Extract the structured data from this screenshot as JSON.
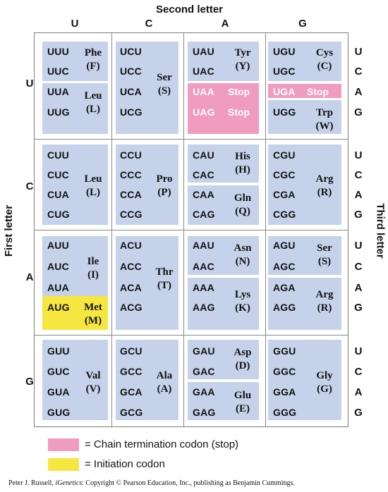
{
  "labels": {
    "second_letter": "Second letter",
    "first_letter": "First letter",
    "third_letter": "Third letter"
  },
  "columns": [
    "U",
    "C",
    "A",
    "G"
  ],
  "rows": [
    "U",
    "C",
    "A",
    "G"
  ],
  "third": [
    "U",
    "C",
    "A",
    "G"
  ],
  "colors": {
    "cell": "#c5d2ea",
    "stop": "#ef9cbf",
    "start": "#f6e640",
    "grid_line": "#8a8a8a"
  },
  "cells": {
    "UU": {
      "codons": [
        "UUU",
        "UUC",
        "UUA",
        "UUG"
      ],
      "aa": [
        {
          "name": "Phe",
          "abbr": "(F)"
        },
        {
          "name": "Leu",
          "abbr": "(L)"
        }
      ]
    },
    "UC": {
      "codons": [
        "UCU",
        "UCC",
        "UCA",
        "UCG"
      ],
      "aa": [
        {
          "name": "Ser",
          "abbr": "(S)"
        }
      ]
    },
    "UA": {
      "codons": [
        "UAU",
        "UAC",
        "UAA",
        "UAG"
      ],
      "aa": [
        {
          "name": "Tyr",
          "abbr": "(Y)"
        }
      ],
      "stop": [
        "Stop",
        "Stop"
      ]
    },
    "UG": {
      "codons": [
        "UGU",
        "UGC",
        "UGA",
        "UGG"
      ],
      "aa": [
        {
          "name": "Cys",
          "abbr": "(C)"
        },
        {
          "name": "Trp",
          "abbr": "(W)"
        }
      ],
      "stop": [
        "Stop"
      ]
    },
    "CU": {
      "codons": [
        "CUU",
        "CUC",
        "CUA",
        "CUG"
      ],
      "aa": [
        {
          "name": "Leu",
          "abbr": "(L)"
        }
      ]
    },
    "CC": {
      "codons": [
        "CCU",
        "CCC",
        "CCA",
        "CCG"
      ],
      "aa": [
        {
          "name": "Pro",
          "abbr": "(P)"
        }
      ]
    },
    "CA": {
      "codons": [
        "CAU",
        "CAC",
        "CAA",
        "CAG"
      ],
      "aa": [
        {
          "name": "His",
          "abbr": "(H)"
        },
        {
          "name": "Gln",
          "abbr": "(Q)"
        }
      ]
    },
    "CG": {
      "codons": [
        "CGU",
        "CGC",
        "CGA",
        "CGG"
      ],
      "aa": [
        {
          "name": "Arg",
          "abbr": "(R)"
        }
      ]
    },
    "AU": {
      "codons": [
        "AUU",
        "AUC",
        "AUA",
        "AUG"
      ],
      "aa": [
        {
          "name": "Ile",
          "abbr": "(I)"
        },
        {
          "name": "Met",
          "abbr": "(M)"
        }
      ]
    },
    "AC": {
      "codons": [
        "ACU",
        "ACC",
        "ACA",
        "ACG"
      ],
      "aa": [
        {
          "name": "Thr",
          "abbr": "(T)"
        }
      ]
    },
    "AA": {
      "codons": [
        "AAU",
        "AAC",
        "AAA",
        "AAG"
      ],
      "aa": [
        {
          "name": "Asn",
          "abbr": "(N)"
        },
        {
          "name": "Lys",
          "abbr": "(K)"
        }
      ]
    },
    "AG": {
      "codons": [
        "AGU",
        "AGC",
        "AGA",
        "AGG"
      ],
      "aa": [
        {
          "name": "Ser",
          "abbr": "(S)"
        },
        {
          "name": "Arg",
          "abbr": "(R)"
        }
      ]
    },
    "GU": {
      "codons": [
        "GUU",
        "GUC",
        "GUA",
        "GUG"
      ],
      "aa": [
        {
          "name": "Val",
          "abbr": "(V)"
        }
      ]
    },
    "GC": {
      "codons": [
        "GCU",
        "GCC",
        "GCA",
        "GCG"
      ],
      "aa": [
        {
          "name": "Ala",
          "abbr": "(A)"
        }
      ]
    },
    "GA": {
      "codons": [
        "GAU",
        "GAC",
        "GAA",
        "GAG"
      ],
      "aa": [
        {
          "name": "Asp",
          "abbr": "(D)"
        },
        {
          "name": "Glu",
          "abbr": "(E)"
        }
      ]
    },
    "GG": {
      "codons": [
        "GGU",
        "GGC",
        "GGA",
        "GGG"
      ],
      "aa": [
        {
          "name": "Gly",
          "abbr": "(G)"
        }
      ]
    }
  },
  "legend": {
    "stop": "= Chain termination codon (stop)",
    "start": "= Initiation codon"
  },
  "credit": {
    "prefix": "Peter J. Russell, ",
    "book": "iGenetics",
    "suffix": ": Copyright © Pearson Education, Inc., publishing as Benjamin Cummings."
  }
}
